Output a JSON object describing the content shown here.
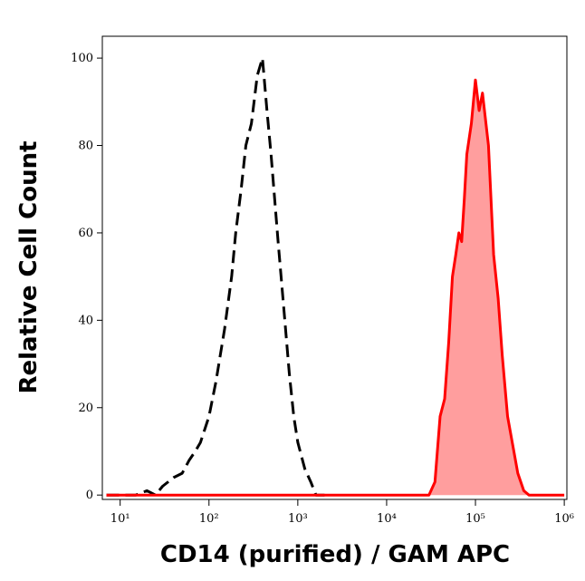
{
  "chart_data": {
    "type": "histogram-overlay",
    "xlabel": "CD14 (purified) / GAM APC",
    "ylabel": "Relative Cell Count",
    "xscale": "log",
    "xlim": [
      6.3,
      1070000
    ],
    "xticks": [
      {
        "value": 10,
        "label": "10¹"
      },
      {
        "value": 100,
        "label": "10²"
      },
      {
        "value": 1000,
        "label": "10³"
      },
      {
        "value": 10000,
        "label": "10⁴"
      },
      {
        "value": 100000,
        "label": "10⁵"
      },
      {
        "value": 1000000,
        "label": "10⁶"
      }
    ],
    "ylim": [
      -1,
      105
    ],
    "yticks": [
      0,
      20,
      40,
      60,
      80,
      100
    ],
    "series": [
      {
        "color": "#000000",
        "dash": true,
        "x": [
          7,
          10,
          15,
          20,
          25,
          30,
          40,
          50,
          60,
          70,
          80,
          100,
          120,
          150,
          180,
          200,
          230,
          260,
          300,
          350,
          400,
          450,
          500,
          600,
          700,
          800,
          900,
          1000,
          1200,
          1400,
          1600,
          2000
        ],
        "values": [
          0,
          0,
          0,
          1,
          0,
          2,
          4,
          5,
          8,
          10,
          12,
          18,
          26,
          38,
          50,
          60,
          70,
          80,
          85,
          96,
          100,
          88,
          78,
          58,
          42,
          28,
          18,
          12,
          6,
          3,
          0,
          0
        ]
      },
      {
        "color": "#ff0000",
        "fill": "#ff9e9e",
        "dash": false,
        "x": [
          7,
          30000,
          35000,
          40000,
          45000,
          50000,
          55000,
          60000,
          65000,
          70000,
          75000,
          80000,
          90000,
          100000,
          110000,
          120000,
          140000,
          160000,
          180000,
          200000,
          230000,
          260000,
          300000,
          350000,
          400000,
          1000000
        ],
        "values": [
          0,
          0,
          3,
          18,
          22,
          35,
          50,
          55,
          60,
          58,
          68,
          78,
          85,
          95,
          88,
          92,
          80,
          55,
          45,
          32,
          18,
          12,
          5,
          1,
          0,
          0
        ]
      }
    ]
  }
}
